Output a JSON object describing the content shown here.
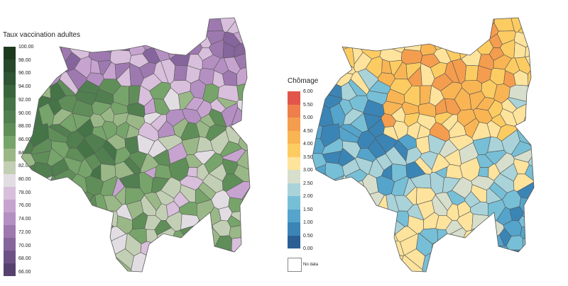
{
  "vaccination_map": {
    "legend_title": "Taux vaccination adultes",
    "ticks": [
      "100.00",
      "98.00",
      "96.00",
      "94.00",
      "92.00",
      "90.00",
      "88.00",
      "86.00",
      "84.00",
      "82.00",
      "80.00",
      "78.00",
      "76.00",
      "74.00",
      "72.00",
      "70.00",
      "68.00",
      "66.00"
    ],
    "colors": [
      "#1e3a1e",
      "#27482a",
      "#2f5533",
      "#3a653c",
      "#457447",
      "#517f50",
      "#608e59",
      "#77a46a",
      "#9ab887",
      "#c3cfb4",
      "#e2dde3",
      "#d8bfdb",
      "#c7a4cf",
      "#b48fc2",
      "#9e79b0",
      "#86659c",
      "#6d5286",
      "#57416e"
    ]
  },
  "unemployment_map": {
    "legend_title": "Chômage",
    "ticks": [
      "6.00",
      "5.50",
      "5.00",
      "4.50",
      "4.00",
      "3.50",
      "3.00",
      "2.50",
      "2.00",
      "1.50",
      "1.00",
      "0.50",
      "0.00"
    ],
    "colors": [
      "#e2564a",
      "#ee7f4c",
      "#f59d4e",
      "#f9b553",
      "#fccc62",
      "#fde39c",
      "#d7dfcc",
      "#a9d3d9",
      "#77bfd6",
      "#54a4cb",
      "#3b85b6",
      "#2b5f94"
    ],
    "no_data_label": "No data"
  }
}
